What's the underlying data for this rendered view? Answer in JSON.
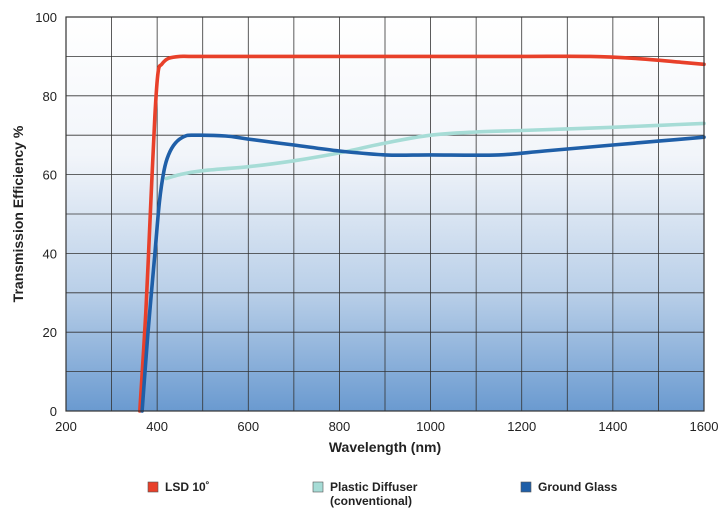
{
  "chart_data": {
    "type": "line",
    "title": "",
    "xlabel": "Wavelength (nm)",
    "ylabel": "Transmission Efficiency %",
    "xlim": [
      200,
      1600
    ],
    "ylim": [
      0,
      100
    ],
    "x_ticks": [
      200,
      400,
      600,
      800,
      1000,
      1200,
      1400,
      1600
    ],
    "y_ticks": [
      0,
      20,
      40,
      60,
      80,
      100
    ],
    "x_ticklabels": [
      "200",
      "400",
      "600",
      "800",
      "1000",
      "1200",
      "1400",
      "1600"
    ],
    "y_ticklabels": [
      "0",
      "20",
      "40",
      "60",
      "80",
      "100"
    ],
    "grid": true,
    "legend_position": "bottom",
    "series": [
      {
        "name": "LSD 10˚",
        "color": "#e8402a",
        "x": [
          362,
          375,
          385,
          395,
          402,
          410,
          425,
          450,
          480,
          600,
          800,
          1000,
          1200,
          1350,
          1450,
          1550,
          1600
        ],
        "y": [
          0,
          25,
          50,
          75,
          86,
          88,
          89.5,
          90,
          90,
          90,
          90,
          90,
          90,
          90,
          89.5,
          88.5,
          88
        ]
      },
      {
        "name": "Plastic Diffuser",
        "name_line2": "(conventional)",
        "color": "#a6dcd6",
        "x": [
          420,
          450,
          500,
          600,
          700,
          800,
          900,
          1000,
          1100,
          1200,
          1300,
          1400,
          1500,
          1600
        ],
        "y": [
          59,
          60,
          61,
          62,
          63.5,
          65.5,
          68,
          70,
          70.8,
          71.2,
          71.6,
          72,
          72.5,
          73
        ]
      },
      {
        "name": "Ground Glass",
        "color": "#1f5fa8",
        "x": [
          367,
          380,
          395,
          405,
          415,
          425,
          440,
          460,
          480,
          550,
          600,
          700,
          800,
          900,
          1000,
          1150,
          1250,
          1400,
          1500,
          1600
        ],
        "y": [
          0,
          20,
          40,
          53,
          61,
          65,
          68,
          69.7,
          70,
          69.8,
          69,
          67.5,
          66,
          65,
          65,
          65,
          66,
          67.5,
          68.5,
          69.5
        ]
      }
    ]
  }
}
